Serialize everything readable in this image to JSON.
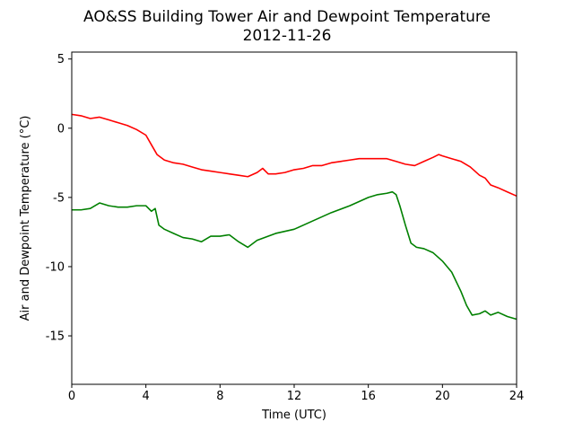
{
  "chart_data": {
    "type": "line",
    "title": "AO&SS Building Tower Air and Dewpoint Temperature",
    "subtitle": "2012-11-26",
    "xlabel": "Time (UTC)",
    "ylabel": "Air and Dewpoint Temperature (°C)",
    "xlim": [
      0,
      24
    ],
    "ylim": [
      -18.5,
      5.5
    ],
    "xticks": [
      "0",
      "4",
      "8",
      "12",
      "16",
      "20",
      "24"
    ],
    "yticks": [
      "5",
      "0",
      "-5",
      "-10",
      "-15"
    ],
    "grid": false,
    "colors": {
      "air": "#ff0000",
      "dewpoint": "#008000"
    },
    "series": [
      {
        "key": "air",
        "x": [
          0,
          0.5,
          1,
          1.5,
          2,
          2.5,
          3,
          3.5,
          4,
          4.3,
          4.6,
          5,
          5.5,
          6,
          6.5,
          7,
          7.5,
          8,
          8.5,
          9,
          9.5,
          10,
          10.3,
          10.6,
          11,
          11.5,
          12,
          12.5,
          13,
          13.5,
          14,
          14.5,
          15,
          15.5,
          16,
          16.5,
          17,
          17.5,
          18,
          18.5,
          19,
          19.5,
          19.8,
          20,
          20.5,
          21,
          21.5,
          22,
          22.3,
          22.6,
          23,
          23.5,
          24
        ],
        "y": [
          1.0,
          0.9,
          0.7,
          0.8,
          0.6,
          0.4,
          0.2,
          -0.1,
          -0.5,
          -1.2,
          -1.9,
          -2.3,
          -2.5,
          -2.6,
          -2.8,
          -3.0,
          -3.1,
          -3.2,
          -3.3,
          -3.4,
          -3.5,
          -3.2,
          -2.9,
          -3.3,
          -3.3,
          -3.2,
          -3.0,
          -2.9,
          -2.7,
          -2.7,
          -2.5,
          -2.4,
          -2.3,
          -2.2,
          -2.2,
          -2.2,
          -2.2,
          -2.4,
          -2.6,
          -2.7,
          -2.4,
          -2.1,
          -1.9,
          -2.0,
          -2.2,
          -2.4,
          -2.8,
          -3.4,
          -3.6,
          -4.1,
          -4.3,
          -4.6,
          -4.9
        ]
      },
      {
        "key": "dewpoint",
        "x": [
          0,
          0.5,
          1,
          1.5,
          2,
          2.5,
          3,
          3.5,
          4,
          4.3,
          4.5,
          4.7,
          5,
          5.5,
          6,
          6.5,
          7,
          7.5,
          8,
          8.5,
          9,
          9.5,
          10,
          11,
          12,
          13,
          14,
          15,
          16,
          16.5,
          17,
          17.3,
          17.5,
          17.7,
          18,
          18.3,
          18.6,
          19,
          19.5,
          20,
          20.5,
          21,
          21.3,
          21.6,
          22,
          22.3,
          22.6,
          23,
          23.5,
          24
        ],
        "y": [
          -5.9,
          -5.9,
          -5.8,
          -5.4,
          -5.6,
          -5.7,
          -5.7,
          -5.6,
          -5.6,
          -6.0,
          -5.8,
          -7.0,
          -7.3,
          -7.6,
          -7.9,
          -8.0,
          -8.2,
          -7.8,
          -7.8,
          -7.7,
          -8.2,
          -8.6,
          -8.1,
          -7.6,
          -7.3,
          -6.7,
          -6.1,
          -5.6,
          -5.0,
          -4.8,
          -4.7,
          -4.6,
          -4.8,
          -5.6,
          -7.0,
          -8.3,
          -8.6,
          -8.7,
          -9.0,
          -9.6,
          -10.4,
          -11.8,
          -12.8,
          -13.5,
          -13.4,
          -13.2,
          -13.5,
          -13.3,
          -13.6,
          -13.8
        ]
      }
    ]
  }
}
